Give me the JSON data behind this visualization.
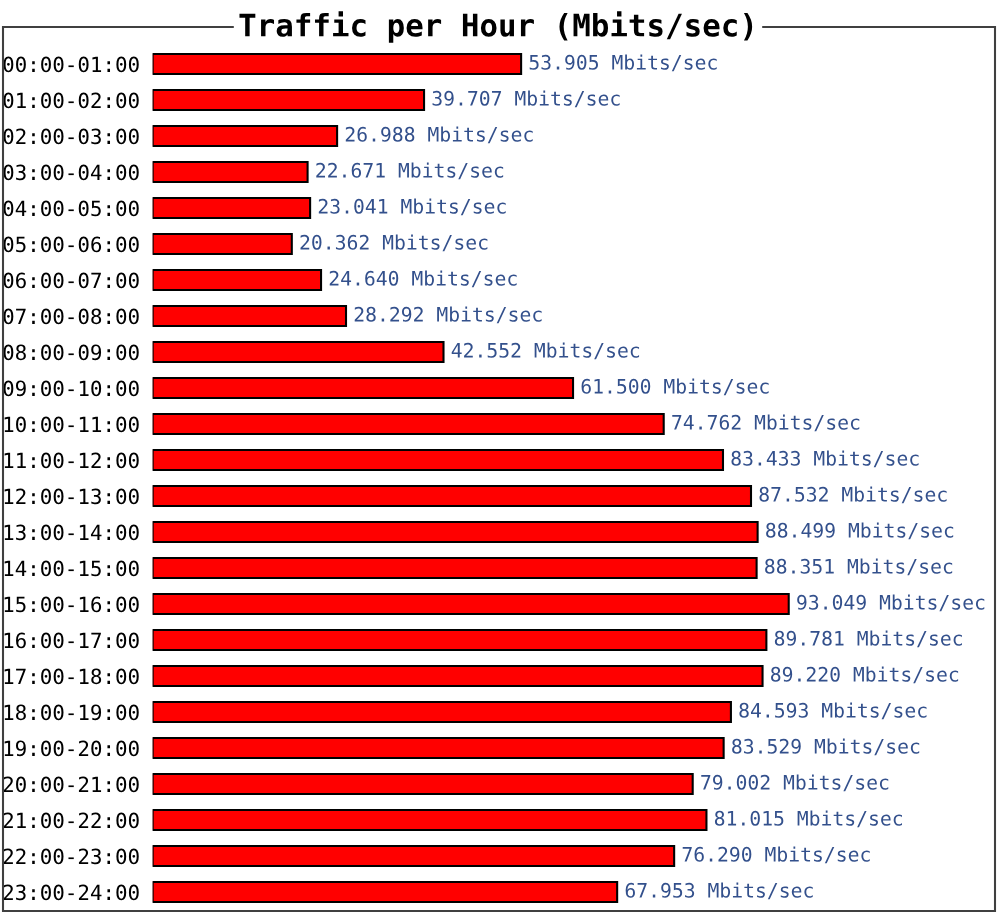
{
  "chart_data": {
    "type": "bar",
    "orientation": "horizontal",
    "title": "Traffic per Hour (Mbits/sec)",
    "categories": [
      "00:00-01:00",
      "01:00-02:00",
      "02:00-03:00",
      "03:00-04:00",
      "04:00-05:00",
      "05:00-06:00",
      "06:00-07:00",
      "07:00-08:00",
      "08:00-09:00",
      "09:00-10:00",
      "10:00-11:00",
      "11:00-12:00",
      "12:00-13:00",
      "13:00-14:00",
      "14:00-15:00",
      "15:00-16:00",
      "16:00-17:00",
      "17:00-18:00",
      "18:00-19:00",
      "19:00-20:00",
      "20:00-21:00",
      "21:00-22:00",
      "22:00-23:00",
      "23:00-24:00"
    ],
    "values": [
      53.905,
      39.707,
      26.988,
      22.671,
      23.041,
      20.362,
      24.64,
      28.292,
      42.552,
      61.5,
      74.762,
      83.433,
      87.532,
      88.499,
      88.351,
      93.049,
      89.781,
      89.22,
      84.593,
      83.529,
      79.002,
      81.015,
      76.29,
      67.953
    ],
    "value_labels": [
      "53.905 Mbits/sec",
      "39.707 Mbits/sec",
      "26.988 Mbits/sec",
      "22.671 Mbits/sec",
      "23.041 Mbits/sec",
      "20.362 Mbits/sec",
      "24.640 Mbits/sec",
      "28.292 Mbits/sec",
      "42.552 Mbits/sec",
      "61.500 Mbits/sec",
      "74.762 Mbits/sec",
      "83.433 Mbits/sec",
      "87.532 Mbits/sec",
      "88.499 Mbits/sec",
      "88.351 Mbits/sec",
      "93.049 Mbits/sec",
      "89.781 Mbits/sec",
      "89.220 Mbits/sec",
      "84.593 Mbits/sec",
      "83.529 Mbits/sec",
      "79.002 Mbits/sec",
      "81.015 Mbits/sec",
      "76.290 Mbits/sec",
      "67.953 Mbits/sec"
    ],
    "color": "#ff0000",
    "tick_labels": "y"
  }
}
